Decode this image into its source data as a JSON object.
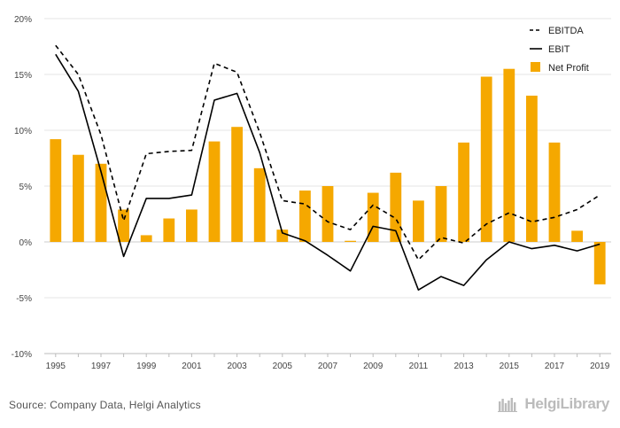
{
  "chart_data": {
    "type": "bar",
    "title": "",
    "xlabel": "",
    "ylabel": "",
    "ylim": [
      -10,
      20
    ],
    "yticks": [
      -10,
      -5,
      0,
      5,
      10,
      15,
      20
    ],
    "ytick_labels": [
      "-10%",
      "-5%",
      "0%",
      "5%",
      "10%",
      "15%",
      "20%"
    ],
    "x_tick_labels": [
      "1995",
      "1997",
      "1999",
      "2001",
      "2003",
      "2005",
      "2007",
      "2009",
      "2011",
      "2013",
      "2015",
      "2017",
      "2019"
    ],
    "categories": [
      "1995",
      "1996",
      "1997",
      "1998",
      "1999",
      "2000",
      "2001",
      "2002",
      "2003",
      "2004",
      "2005",
      "2006",
      "2007",
      "2008",
      "2009",
      "2010",
      "2011",
      "2012",
      "2013",
      "2014",
      "2015",
      "2016",
      "2017",
      "2018",
      "2019"
    ],
    "grid": "horizontal",
    "legend_position": "top-right",
    "series": [
      {
        "name": "EBITDA",
        "type": "line",
        "style": "dashed",
        "color": "#000000",
        "values": [
          17.6,
          15.0,
          9.6,
          1.9,
          7.9,
          8.1,
          8.2,
          16.0,
          15.2,
          9.8,
          3.7,
          3.4,
          1.8,
          1.1,
          3.3,
          2.1,
          -1.6,
          0.4,
          -0.1,
          1.6,
          2.6,
          1.8,
          2.2,
          2.9,
          4.2
        ]
      },
      {
        "name": "EBIT",
        "type": "line",
        "style": "solid",
        "color": "#000000",
        "values": [
          16.8,
          13.5,
          6.3,
          -1.3,
          3.9,
          3.9,
          4.2,
          12.7,
          13.3,
          8.0,
          0.8,
          0.1,
          -1.2,
          -2.6,
          1.4,
          1.0,
          -4.3,
          -3.1,
          -3.9,
          -1.6,
          0.0,
          -0.6,
          -0.3,
          -0.8,
          -0.2
        ]
      },
      {
        "name": "Net Profit",
        "type": "bar",
        "color": "#f5a800",
        "values": [
          9.2,
          7.8,
          7.0,
          2.9,
          0.6,
          2.1,
          2.9,
          9.0,
          10.3,
          6.6,
          1.1,
          4.6,
          5.0,
          0.1,
          4.4,
          6.2,
          3.7,
          5.0,
          8.9,
          14.8,
          15.5,
          13.1,
          8.9,
          1.0,
          -3.8
        ]
      }
    ]
  },
  "footer": {
    "source": "Source: Company Data, Helgi Analytics",
    "logo_text": "HelgiLibrary"
  }
}
